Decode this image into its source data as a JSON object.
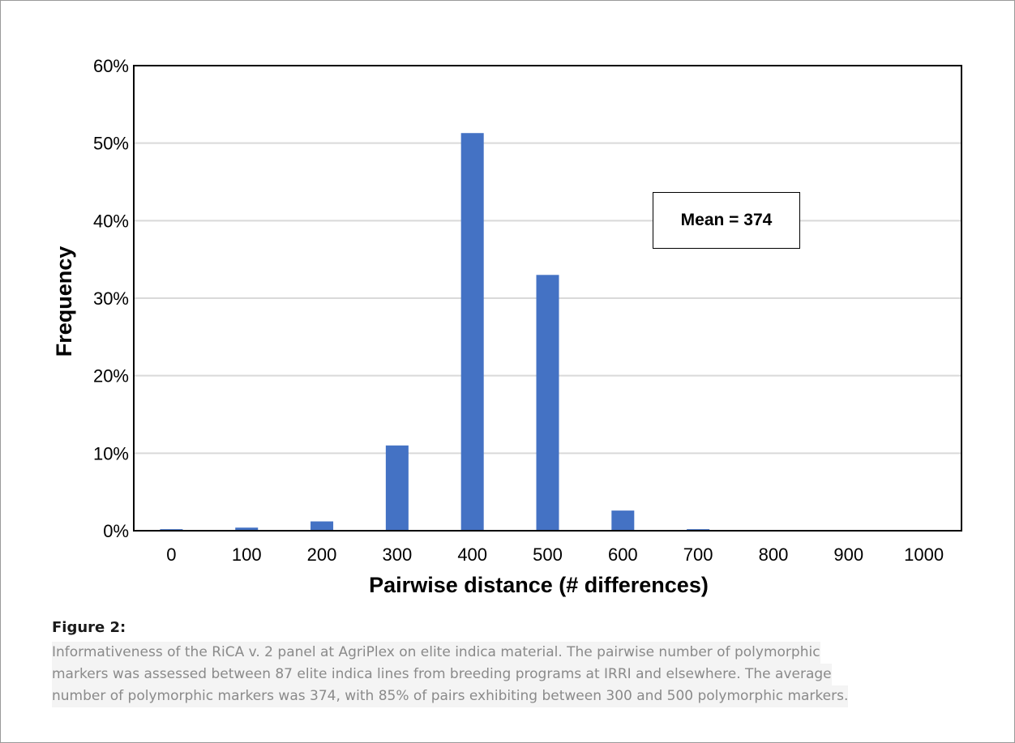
{
  "chart_data": {
    "type": "bar",
    "categories": [
      "0",
      "100",
      "200",
      "300",
      "400",
      "500",
      "600",
      "700",
      "800",
      "900",
      "1000"
    ],
    "values": [
      0.2,
      0.4,
      1.2,
      11.0,
      51.3,
      33.0,
      2.6,
      0.2,
      0.0,
      0.0,
      0.0
    ],
    "xlabel": "Pairwise distance (# differences)",
    "ylabel": "Frequency",
    "ylim": [
      0,
      60
    ],
    "yticks": [
      "0%",
      "10%",
      "20%",
      "30%",
      "40%",
      "50%",
      "60%"
    ],
    "grid": "horizontal",
    "bar_color": "#4472c4",
    "annotation": "Mean = 374"
  },
  "caption": {
    "heading": "Figure 2:",
    "lines": [
      "Informativeness of the RiCA v. 2 panel at AgriPlex on elite indica material. The pairwise number of polymorphic",
      "markers was assessed between 87 elite indica lines from breeding programs at IRRI and elsewhere. The average",
      "number of polymorphic markers was 374, with 85% of pairs exhibiting between 300 and 500 polymorphic markers."
    ]
  }
}
